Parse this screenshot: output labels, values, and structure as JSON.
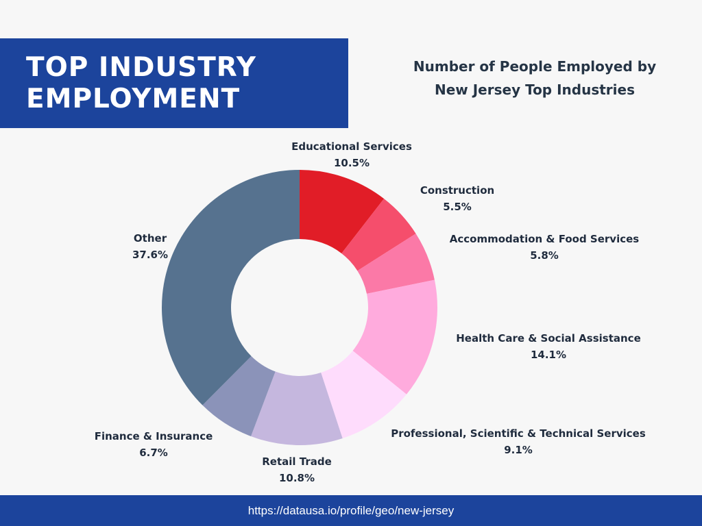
{
  "title": {
    "line1": "TOP INDUSTRY",
    "line2": "EMPLOYMENT"
  },
  "subtitle": {
    "line1": "Number of People Employed by",
    "line2": "New Jersey Top Industries"
  },
  "footer": {
    "url": "https://datausa.io/profile/geo/new-jersey"
  },
  "chart_data": {
    "type": "pie",
    "title": "Number of People Employed by New Jersey Top Industries",
    "donut": true,
    "slices": [
      {
        "label": "Educational Services",
        "value": 10.5,
        "display": "10.5%",
        "color": "#e11d27"
      },
      {
        "label": "Construction",
        "value": 5.5,
        "display": "5.5%",
        "color": "#f54e6c"
      },
      {
        "label": "Accommodation & Food Services",
        "value": 5.8,
        "display": "5.8%",
        "color": "#fb79a7"
      },
      {
        "label": "Health Care & Social Assistance",
        "value": 14.1,
        "display": "14.1%",
        "color": "#ffabdd"
      },
      {
        "label": "Professional, Scientific & Technical Services",
        "value": 9.1,
        "display": "9.1%",
        "color": "#fedcfc"
      },
      {
        "label": "Retail Trade",
        "value": 10.8,
        "display": "10.8%",
        "color": "#c5b7de"
      },
      {
        "label": "Finance & Insurance",
        "value": 6.7,
        "display": "6.7%",
        "color": "#8b93b9"
      },
      {
        "label": "Other",
        "value": 37.6,
        "display": "37.6%",
        "color": "#56728f"
      }
    ]
  }
}
